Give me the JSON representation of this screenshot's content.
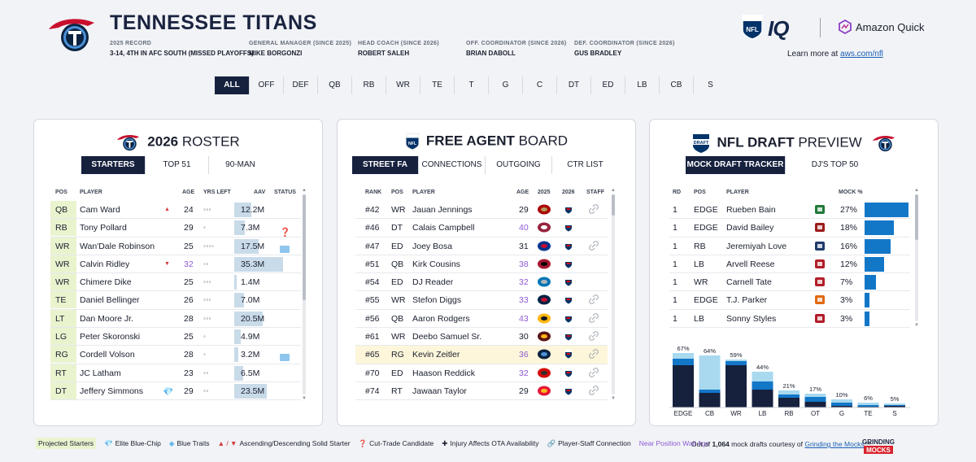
{
  "header": {
    "team": "TENNESSEE TITANS",
    "meta": [
      {
        "k": "2025 RECORD",
        "v": "3-14, 4TH IN AFC SOUTH (MISSED PLAYOFFS)"
      },
      {
        "k": "GENERAL MANAGER (SINCE 2025)",
        "v": "MIKE BORGONZI"
      },
      {
        "k": "HEAD COACH (SINCE 2026)",
        "v": "ROBERT SALEH"
      },
      {
        "k": "OFF. COORDINATOR (SINCE 2026)",
        "v": "BRIAN DABOLL"
      },
      {
        "k": "DEF. COORDINATOR (SINCE 2026)",
        "v": "GUS BRADLEY"
      }
    ],
    "brand": {
      "iq": "IQ",
      "amazon": "Amazon Quick",
      "learn_prefix": "Learn more at ",
      "learn_link": "aws.com/nfl"
    }
  },
  "positions": [
    "ALL",
    "OFF",
    "DEF",
    "QB",
    "RB",
    "WR",
    "TE",
    "T",
    "G",
    "C",
    "DT",
    "ED",
    "LB",
    "CB",
    "S"
  ],
  "roster": {
    "title_bold": "2026",
    "title_rest": "ROSTER",
    "tabs": [
      "STARTERS",
      "TOP 51",
      "90-MAN"
    ],
    "headers": {
      "pos": "POS",
      "player": "PLAYER",
      "age": "AGE",
      "yrs": "YRS LEFT",
      "aav": "AAV",
      "status": "STATUS"
    },
    "rows": [
      {
        "pos": "QB",
        "player": "Cam Ward",
        "mark": "▲",
        "age": "24",
        "yrs": "◦◦◦",
        "aav": "12.2M",
        "aav_pct": 0.35,
        "status": ""
      },
      {
        "pos": "RB",
        "player": "Tony Pollard",
        "mark": "",
        "age": "29",
        "yrs": "◦",
        "aav": "7.3M",
        "aav_pct": 0.21,
        "status": "❓"
      },
      {
        "pos": "WR",
        "player": "Wan'Dale Robinson",
        "mark": "",
        "age": "25",
        "yrs": "◦◦◦◦",
        "aav": "17.5M",
        "aav_pct": 0.5,
        "status": "new"
      },
      {
        "pos": "WR",
        "player": "Calvin Ridley",
        "mark": "▼",
        "age": "32",
        "age_purple": true,
        "yrs": "◦◦",
        "aav": "35.3M",
        "aav_pct": 1.0,
        "status": ""
      },
      {
        "pos": "WR",
        "player": "Chimere Dike",
        "mark": "",
        "age": "25",
        "yrs": "◦◦◦",
        "aav": "1.4M",
        "aav_pct": 0.04,
        "status": ""
      },
      {
        "pos": "TE",
        "player": "Daniel Bellinger",
        "mark": "",
        "age": "26",
        "yrs": "◦◦◦",
        "aav": "7.0M",
        "aav_pct": 0.2,
        "status": ""
      },
      {
        "pos": "LT",
        "player": "Dan Moore Jr.",
        "mark": "",
        "age": "28",
        "yrs": "◦◦◦",
        "aav": "20.5M",
        "aav_pct": 0.58,
        "status": ""
      },
      {
        "pos": "LG",
        "player": "Peter Skoronski",
        "mark": "",
        "age": "25",
        "yrs": "◦",
        "aav": "4.9M",
        "aav_pct": 0.14,
        "status": ""
      },
      {
        "pos": "RG",
        "player": "Cordell Volson",
        "mark": "",
        "age": "28",
        "yrs": "◦",
        "aav": "3.2M",
        "aav_pct": 0.09,
        "status": "new"
      },
      {
        "pos": "RT",
        "player": "JC Latham",
        "mark": "",
        "age": "23",
        "yrs": "◦◦",
        "aav": "6.5M",
        "aav_pct": 0.18,
        "status": ""
      },
      {
        "pos": "DT",
        "player": "Jeffery Simmons",
        "mark": "💎",
        "age": "29",
        "yrs": "◦◦",
        "aav": "23.5M",
        "aav_pct": 0.67,
        "status": ""
      }
    ]
  },
  "fa": {
    "title_bold": "FREE AGENT",
    "title_rest": "BOARD",
    "tabs": [
      "STREET FA",
      "CONNECTIONS",
      "OUTGOING",
      "CTR LIST"
    ],
    "headers": {
      "rank": "RANK",
      "pos": "POS",
      "player": "PLAYER",
      "age": "AGE",
      "y2025": "2025",
      "y2026": "2026",
      "staff": "STAFF"
    },
    "rows": [
      {
        "rank": "#42",
        "pos": "WR",
        "player": "Jauan Jennings",
        "age": "29",
        "team": "SF",
        "staff": true,
        "hl": false
      },
      {
        "rank": "#46",
        "pos": "DT",
        "player": "Calais Campbell",
        "age": "40",
        "age_purple": true,
        "team": "ARI",
        "staff": false,
        "hl": false
      },
      {
        "rank": "#47",
        "pos": "ED",
        "player": "Joey Bosa",
        "age": "31",
        "team": "BUF",
        "staff": true,
        "hl": false
      },
      {
        "rank": "#51",
        "pos": "QB",
        "player": "Kirk Cousins",
        "age": "38",
        "age_purple": true,
        "team": "ATL",
        "staff": false,
        "hl": false
      },
      {
        "rank": "#54",
        "pos": "ED",
        "player": "DJ Reader",
        "age": "32",
        "age_purple": true,
        "team": "DET",
        "staff": false,
        "hl": false
      },
      {
        "rank": "#55",
        "pos": "WR",
        "player": "Stefon Diggs",
        "age": "33",
        "age_purple": true,
        "team": "NE",
        "staff": true,
        "hl": false
      },
      {
        "rank": "#56",
        "pos": "QB",
        "player": "Aaron Rodgers",
        "age": "43",
        "age_purple": true,
        "team": "PIT",
        "staff": true,
        "hl": false
      },
      {
        "rank": "#61",
        "pos": "WR",
        "player": "Deebo Samuel Sr.",
        "age": "30",
        "team": "WAS",
        "staff": true,
        "hl": false
      },
      {
        "rank": "#65",
        "pos": "RG",
        "player": "Kevin Zeitler",
        "age": "36",
        "age_purple": true,
        "team": "TEN",
        "staff": true,
        "hl": true
      },
      {
        "rank": "#70",
        "pos": "ED",
        "player": "Haason Reddick",
        "age": "32",
        "age_purple": true,
        "team": "TB",
        "staff": true,
        "hl": false
      },
      {
        "rank": "#74",
        "pos": "RT",
        "player": "Jawaan Taylor",
        "age": "29",
        "team": "KC",
        "staff": true,
        "hl": false
      }
    ]
  },
  "draft": {
    "title_bold": "NFL DRAFT",
    "title_rest": "PREVIEW",
    "tabs": [
      "MOCK DRAFT TRACKER",
      "DJ'S TOP 50"
    ],
    "headers": {
      "rd": "RD",
      "pos": "POS",
      "player": "PLAYER",
      "mock": "MOCK %"
    },
    "rows": [
      {
        "rd": "1",
        "pos": "EDGE",
        "player": "Rueben Bain",
        "mock": "27%",
        "mock_pct": 27,
        "school": "#1f7a3a"
      },
      {
        "rd": "1",
        "pos": "EDGE",
        "player": "David Bailey",
        "mock": "18%",
        "mock_pct": 18,
        "school": "#9b1b1b"
      },
      {
        "rd": "1",
        "pos": "RB",
        "player": "Jeremiyah Love",
        "mock": "16%",
        "mock_pct": 16,
        "school": "#1f3a6b"
      },
      {
        "rd": "1",
        "pos": "LB",
        "player": "Arvell Reese",
        "mock": "12%",
        "mock_pct": 12,
        "school": "#b21e2a"
      },
      {
        "rd": "1",
        "pos": "WR",
        "player": "Carnell Tate",
        "mock": "7%",
        "mock_pct": 7,
        "school": "#b21e2a"
      },
      {
        "rd": "1",
        "pos": "EDGE",
        "player": "T.J. Parker",
        "mock": "3%",
        "mock_pct": 3,
        "school": "#e06a12"
      },
      {
        "rd": "1",
        "pos": "LB",
        "player": "Sonny Styles",
        "mock": "3%",
        "mock_pct": 3,
        "school": "#b21e2a"
      }
    ]
  },
  "chart_data": {
    "type": "bar",
    "categories": [
      "EDGE",
      "CB",
      "WR",
      "LB",
      "RB",
      "OT",
      "G",
      "TE",
      "S"
    ],
    "values": [
      67,
      64,
      59,
      44,
      21,
      17,
      10,
      6,
      5
    ],
    "labels": [
      "67%",
      "64%",
      "59%",
      "44%",
      "21%",
      "17%",
      "10%",
      "6%",
      "5%"
    ],
    "series": [
      {
        "values": [
          52,
          18,
          52,
          22,
          12,
          7,
          2,
          1,
          2
        ]
      },
      {
        "values": [
          8,
          4,
          5,
          10,
          4,
          6,
          4,
          2,
          1
        ]
      },
      {
        "values": [
          7,
          42,
          2,
          12,
          5,
          4,
          4,
          3,
          2
        ]
      }
    ],
    "colors": [
      "#16213e",
      "#1377c8",
      "#a9d9ef"
    ],
    "ylim": [
      0,
      70
    ]
  },
  "legend": {
    "projected": "Projected Starters",
    "elite": "Elite Blue-Chip",
    "blue": "Blue Traits",
    "asc": "Ascending/Descending Solid Starter",
    "asc_mark": "▲ / ▼",
    "cut": "Cut-Trade Candidate",
    "injury": "Injury Affects OTA Availability",
    "staff": "Player-Staff Connection",
    "near": "Near Position Wall Age"
  },
  "footnote": {
    "prefix": "Out of ",
    "count": "1,064",
    "mid": " mock drafts courtesy of ",
    "link": "Grinding the Mocks",
    "tm": "™"
  },
  "colors": {
    "navy": "#16213e",
    "accent": "#1377c8",
    "projected_bg": "#e9f4cf",
    "purple": "#8e5ad6"
  }
}
